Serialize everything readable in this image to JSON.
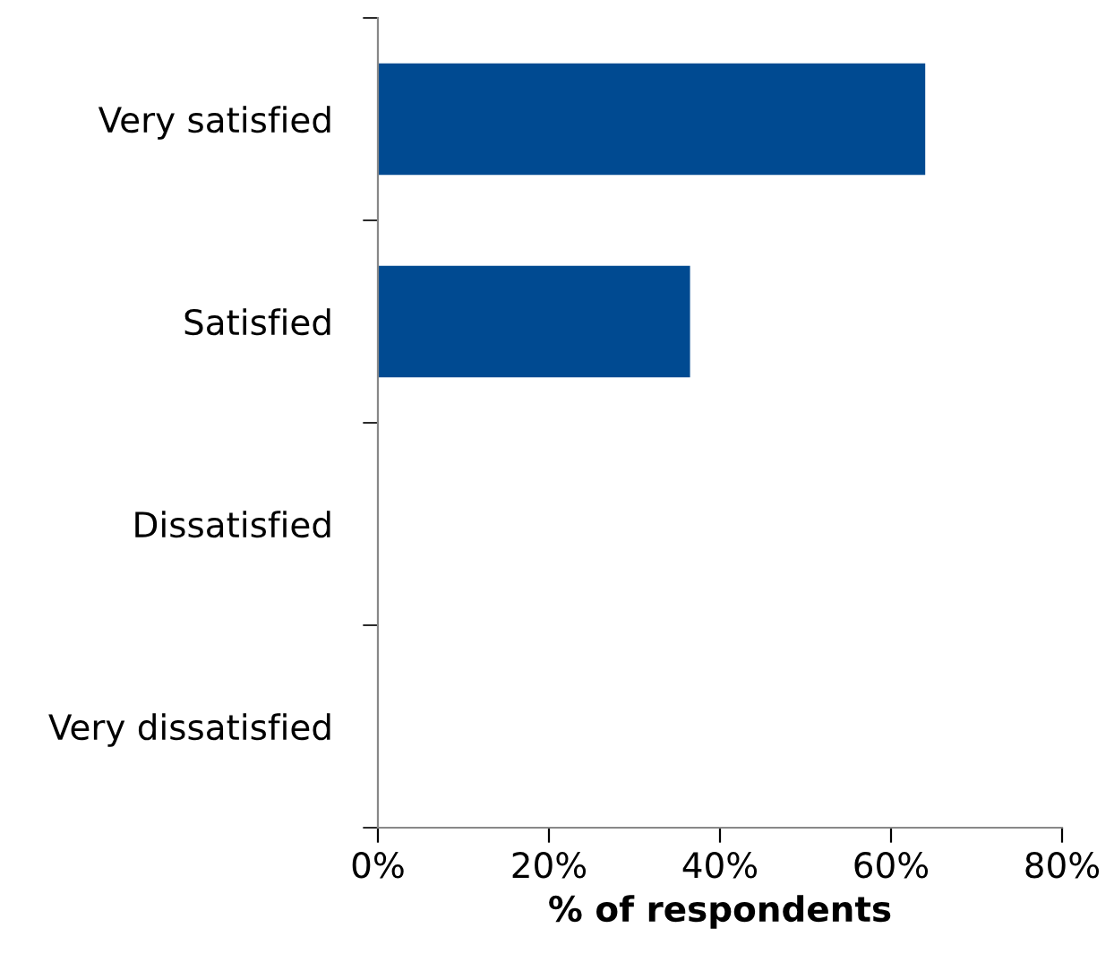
{
  "chart_data": {
    "type": "bar",
    "orientation": "horizontal",
    "categories": [
      "Very satisfied",
      "Satisfied",
      "Dissatisfied",
      "Very dissatisfied"
    ],
    "values": [
      64,
      36.5,
      0,
      0
    ],
    "color": "#004a91",
    "xlim": [
      0,
      80
    ],
    "xticks": [
      {
        "value": 0,
        "label": "0%"
      },
      {
        "value": 20,
        "label": "20%"
      },
      {
        "value": 40,
        "label": "40%"
      },
      {
        "value": 60,
        "label": "60%"
      },
      {
        "value": 80,
        "label": "80%"
      }
    ],
    "xlabel": "% of respondents",
    "grid": false,
    "legend": false
  }
}
